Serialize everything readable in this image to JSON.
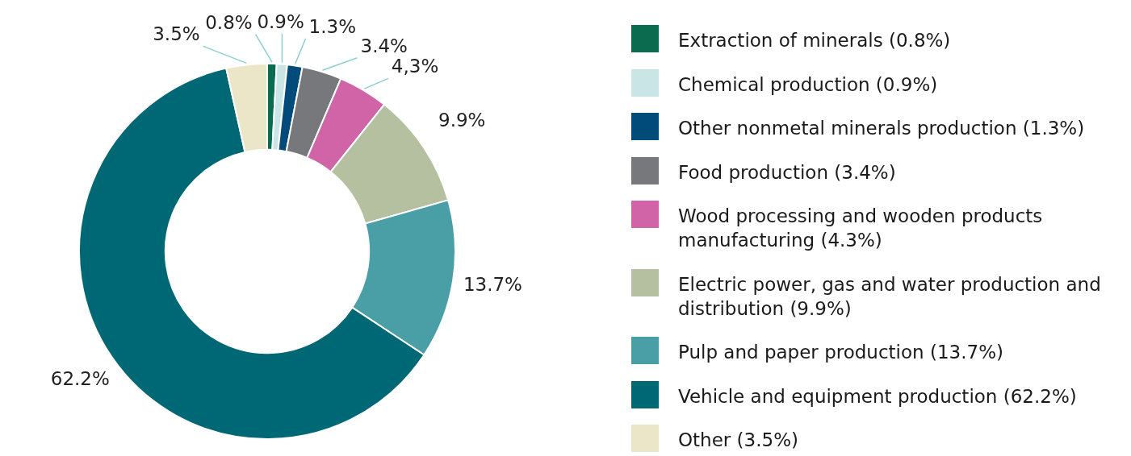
{
  "chart_data": {
    "type": "donut",
    "categories": [
      "Extraction of minerals (0.8%)",
      "Chemical production (0.9%)",
      "Other nonmetal minerals production (1.3%)",
      "Food production (3.4%)",
      "Wood processing and wooden products manufacturing (4.3%)",
      "Electric power, gas and water production and distribution (9.9%)",
      "Pulp and paper production (13.7%)",
      "Vehicle and equipment production (62.2%)",
      "Other (3.5%)"
    ],
    "values": [
      0.8,
      0.9,
      1.3,
      3.4,
      4.3,
      9.9,
      13.7,
      62.2,
      3.5
    ],
    "colors": [
      "#0a6b4f",
      "#c9e5e6",
      "#004b7a",
      "#77787c",
      "#d064a6",
      "#b4c09f",
      "#4a9fa7",
      "#006774",
      "#ece6c9"
    ],
    "value_labels": [
      "0.8%",
      "0.9%",
      "1.3%",
      "3.4%",
      "4,3%",
      "9.9%",
      "13.7%",
      "62.2%",
      "3.5%"
    ],
    "legend": "right"
  }
}
